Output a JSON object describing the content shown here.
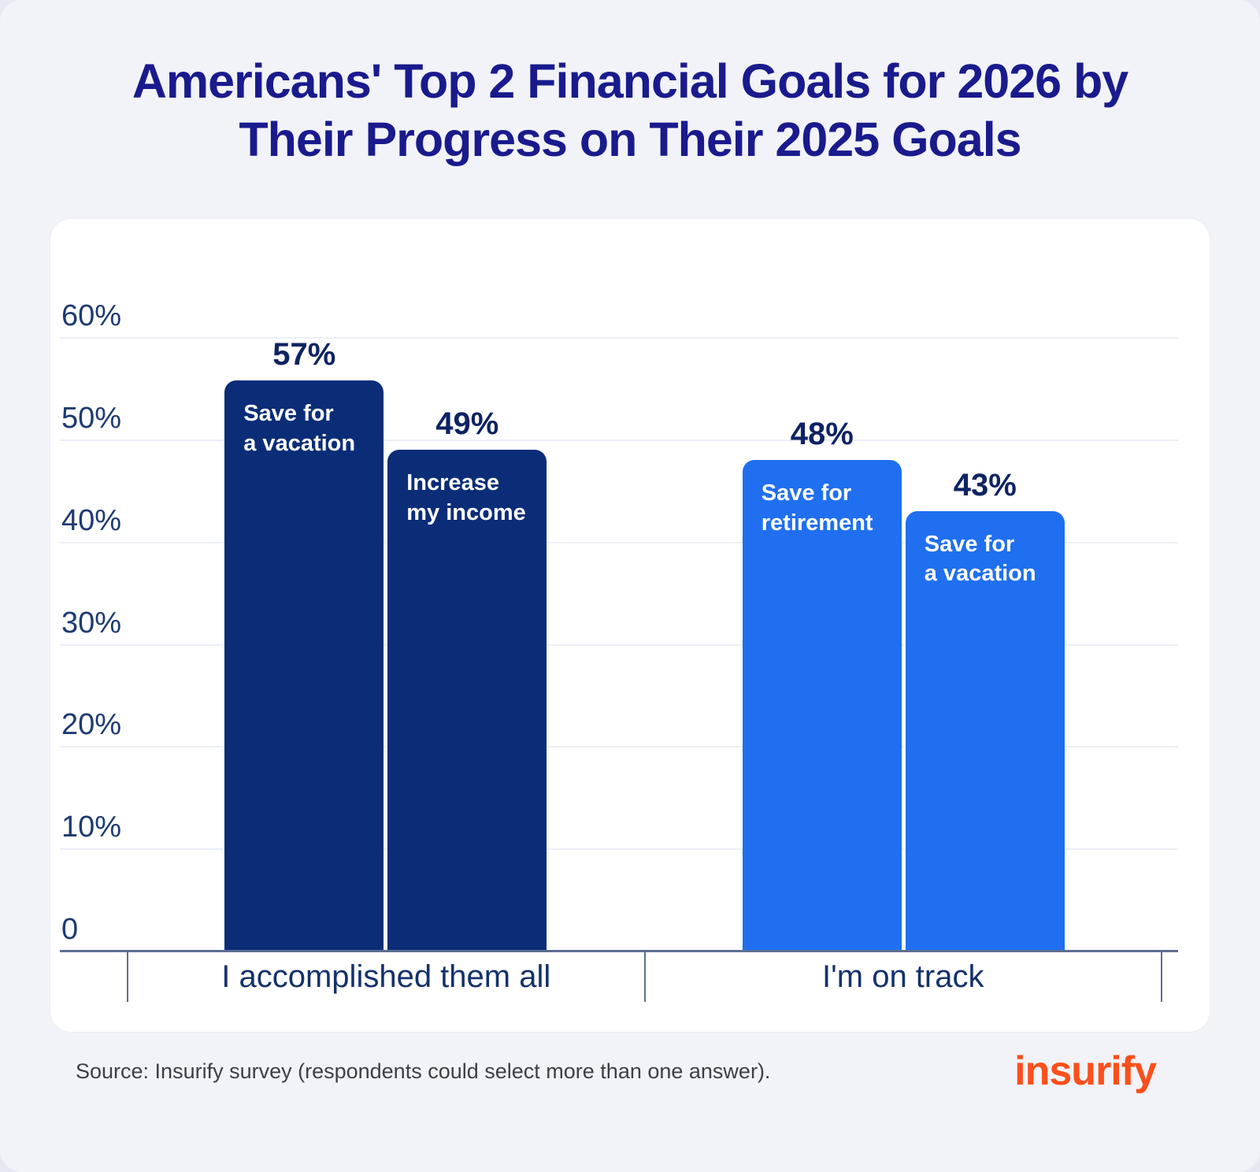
{
  "title": "Americans' Top 2 Financial Goals for 2026 by Their Progress on Their 2025 Goals",
  "footer": {
    "source": "Source: Insurify survey (respondents could select more than one answer).",
    "logo_text": "insurify",
    "logo_color": "#fc4f1b"
  },
  "colors": {
    "title": "#191b8d",
    "dark_bar": "#0b2d78",
    "bright_bar": "#1f6ff0",
    "axis": "#5c6f92",
    "value_label": "#0e2363"
  },
  "chart_data": {
    "type": "bar",
    "title": "Americans' Top 2 Financial Goals for 2026 by Their Progress on Their 2025 Goals",
    "ylim": [
      0,
      60
    ],
    "grid": true,
    "yticks": [
      {
        "label": "60%",
        "value": 60
      },
      {
        "label": "50%",
        "value": 50
      },
      {
        "label": "40%",
        "value": 40
      },
      {
        "label": "30%",
        "value": 30
      },
      {
        "label": "20%",
        "value": 20
      },
      {
        "label": "10%",
        "value": 10
      },
      {
        "label": "0",
        "value": 0
      }
    ],
    "groups": [
      {
        "category": "I accomplished them all",
        "color": "#0b2d78",
        "bars": [
          {
            "name": "Save for a vacation",
            "label_lines": [
              "Save for",
              "a vacation"
            ],
            "value": 57,
            "value_label": "57%"
          },
          {
            "name": "Increase my income",
            "label_lines": [
              "Increase",
              "my income"
            ],
            "value": 49,
            "value_label": "49%"
          }
        ]
      },
      {
        "category": "I'm on track",
        "color": "#1f6ff0",
        "bars": [
          {
            "name": "Save for retirement",
            "label_lines": [
              "Save for",
              "retirement"
            ],
            "value": 48,
            "value_label": "48%"
          },
          {
            "name": "Save for a vacation",
            "label_lines": [
              "Save for",
              "a vacation"
            ],
            "value": 43,
            "value_label": "43%"
          }
        ]
      }
    ]
  }
}
